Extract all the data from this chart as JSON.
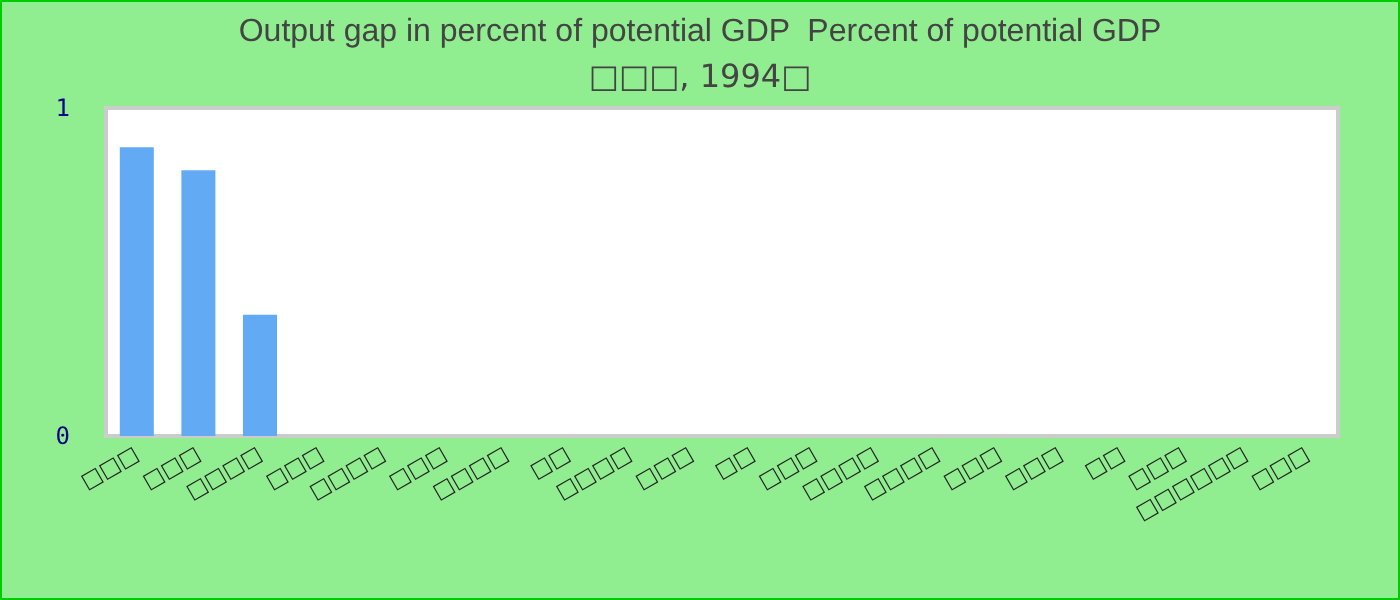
{
  "chart_data": {
    "type": "bar",
    "title": "Output gap in percent of potential GDP  Percent of potential GDP",
    "subtitle": "□□□, 1994□",
    "categories": [
      "□□□",
      "□□□",
      "□□□□",
      "□□□",
      "□□□□",
      "□□□",
      "□□□□",
      "□□",
      "□□□□",
      "□□□",
      "□□",
      "□□□",
      "□□□□",
      "□□□□",
      "□□□",
      "□□□",
      "□□",
      "□□□",
      "□□□□□□",
      "□□□"
    ],
    "values": [
      0.88,
      0.81,
      0.37,
      null,
      null,
      null,
      null,
      null,
      null,
      null,
      null,
      null,
      null,
      null,
      null,
      null,
      null,
      null,
      null,
      null
    ],
    "color": "#63aaf5",
    "ylim": [
      0,
      1
    ],
    "yticks": [
      0,
      1
    ],
    "grid": false
  }
}
